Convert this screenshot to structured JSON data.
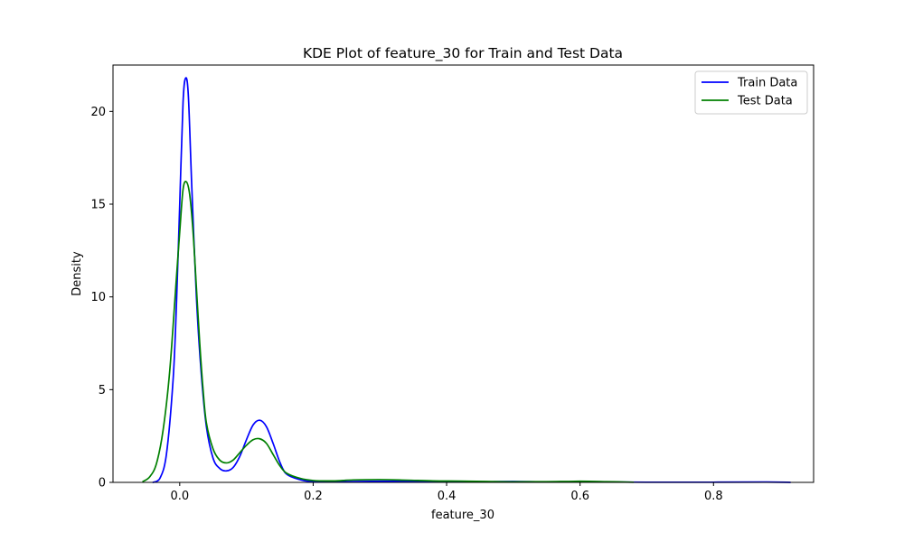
{
  "chart_data": {
    "type": "line",
    "title": "KDE Plot of feature_30 for Train and Test Data",
    "xlabel": "feature_30",
    "ylabel": "Density",
    "xlim": [
      -0.1,
      0.95
    ],
    "ylim": [
      0,
      22.5
    ],
    "xticks": [
      0.0,
      0.2,
      0.4,
      0.6,
      0.8
    ],
    "xtick_labels": [
      "0.0",
      "0.2",
      "0.4",
      "0.6",
      "0.8"
    ],
    "yticks": [
      0,
      5,
      10,
      15,
      20
    ],
    "ytick_labels": [
      "0",
      "5",
      "10",
      "15",
      "20"
    ],
    "grid": false,
    "legend_position": "upper right",
    "series": [
      {
        "name": "Train Data",
        "color": "#0000ff",
        "points": [
          [
            -0.04,
            0.0
          ],
          [
            -0.03,
            0.2
          ],
          [
            -0.02,
            1.5
          ],
          [
            -0.01,
            5.5
          ],
          [
            -0.005,
            9.5
          ],
          [
            0.0,
            15.0
          ],
          [
            0.005,
            20.5
          ],
          [
            0.009,
            21.8
          ],
          [
            0.013,
            20.8
          ],
          [
            0.018,
            16.0
          ],
          [
            0.025,
            10.0
          ],
          [
            0.032,
            6.0
          ],
          [
            0.04,
            3.0
          ],
          [
            0.05,
            1.3
          ],
          [
            0.06,
            0.75
          ],
          [
            0.07,
            0.62
          ],
          [
            0.08,
            0.8
          ],
          [
            0.09,
            1.4
          ],
          [
            0.1,
            2.3
          ],
          [
            0.11,
            3.1
          ],
          [
            0.12,
            3.35
          ],
          [
            0.13,
            3.0
          ],
          [
            0.14,
            2.1
          ],
          [
            0.15,
            1.1
          ],
          [
            0.16,
            0.45
          ],
          [
            0.18,
            0.15
          ],
          [
            0.2,
            0.05
          ],
          [
            0.25,
            0.04
          ],
          [
            0.3,
            0.06
          ],
          [
            0.35,
            0.05
          ],
          [
            0.4,
            0.04
          ],
          [
            0.45,
            0.03
          ],
          [
            0.5,
            0.05
          ],
          [
            0.55,
            0.02
          ],
          [
            0.6,
            0.03
          ],
          [
            0.65,
            0.02
          ],
          [
            0.7,
            0.01
          ],
          [
            0.8,
            0.01
          ],
          [
            0.88,
            0.02
          ],
          [
            0.915,
            0.0
          ]
        ]
      },
      {
        "name": "Test Data",
        "color": "#008000",
        "points": [
          [
            -0.055,
            0.05
          ],
          [
            -0.045,
            0.3
          ],
          [
            -0.035,
            1.0
          ],
          [
            -0.025,
            2.8
          ],
          [
            -0.015,
            6.0
          ],
          [
            -0.005,
            11.0
          ],
          [
            0.0,
            13.5
          ],
          [
            0.005,
            15.8
          ],
          [
            0.01,
            16.2
          ],
          [
            0.015,
            15.5
          ],
          [
            0.02,
            13.5
          ],
          [
            0.025,
            10.5
          ],
          [
            0.03,
            7.5
          ],
          [
            0.035,
            5.0
          ],
          [
            0.04,
            3.2
          ],
          [
            0.05,
            1.8
          ],
          [
            0.06,
            1.2
          ],
          [
            0.07,
            1.05
          ],
          [
            0.08,
            1.2
          ],
          [
            0.09,
            1.6
          ],
          [
            0.1,
            2.0
          ],
          [
            0.11,
            2.3
          ],
          [
            0.12,
            2.35
          ],
          [
            0.13,
            2.1
          ],
          [
            0.14,
            1.5
          ],
          [
            0.15,
            0.9
          ],
          [
            0.16,
            0.5
          ],
          [
            0.18,
            0.22
          ],
          [
            0.2,
            0.1
          ],
          [
            0.23,
            0.08
          ],
          [
            0.26,
            0.13
          ],
          [
            0.3,
            0.15
          ],
          [
            0.34,
            0.12
          ],
          [
            0.38,
            0.08
          ],
          [
            0.42,
            0.07
          ],
          [
            0.46,
            0.05
          ],
          [
            0.5,
            0.03
          ],
          [
            0.55,
            0.04
          ],
          [
            0.6,
            0.06
          ],
          [
            0.64,
            0.04
          ],
          [
            0.68,
            0.01
          ]
        ]
      }
    ]
  }
}
